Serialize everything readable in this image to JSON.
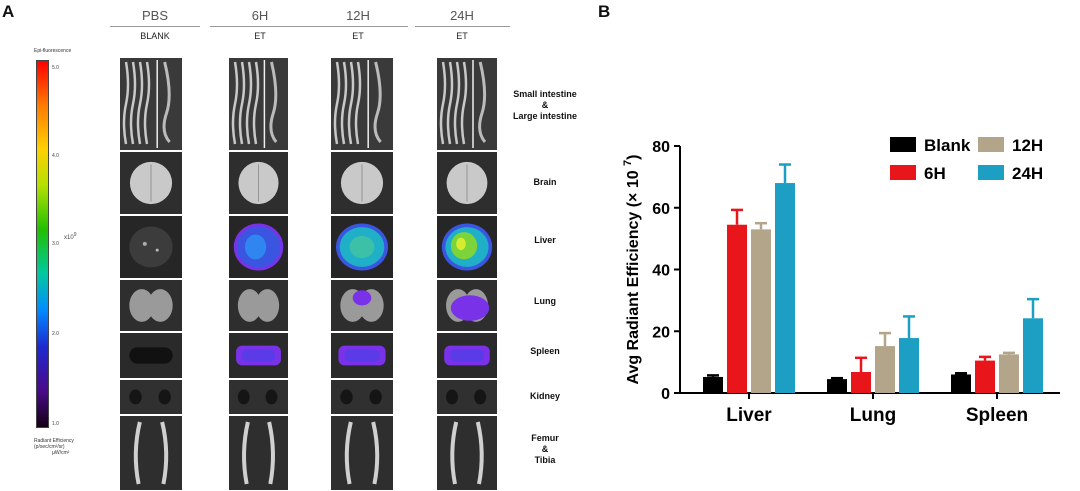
{
  "panel_a": {
    "letter": "A",
    "columns": [
      {
        "title": "PBS",
        "sub": "BLANK"
      },
      {
        "title": "6H",
        "sub": "ET"
      },
      {
        "title": "12H",
        "sub": "ET"
      },
      {
        "title": "24H",
        "sub": "ET"
      }
    ],
    "organs": [
      {
        "line1": "Small intestine",
        "line2": "&",
        "line3": "Large intestine"
      },
      {
        "line1": "Brain",
        "line2": "",
        "line3": ""
      },
      {
        "line1": "Liver",
        "line2": "",
        "line3": ""
      },
      {
        "line1": "Lung",
        "line2": "",
        "line3": ""
      },
      {
        "line1": "Spleen",
        "line2": "",
        "line3": ""
      },
      {
        "line1": "Kidney",
        "line2": "",
        "line3": ""
      },
      {
        "line1": "Femur",
        "line2": "&",
        "line3": "Tibia"
      }
    ],
    "colorbar": {
      "title": "Epi-fluorescence",
      "ticks": [
        "5.0",
        "4.0",
        "3.0",
        "2.0",
        "1.0"
      ],
      "exponent": "x10",
      "exponent_power": "9",
      "unit_line1": "Radiant Efficiency",
      "unit_line2": "(p/sec/cm²/sr)",
      "unit_line3": "µW/cm²"
    },
    "colors": {
      "liver_high": "#7dd33a",
      "liver_mid": "#1fb0c8",
      "signal_blue": "#3a56e0",
      "signal_purple": "#7a32e8"
    }
  },
  "chart_data": {
    "letter": "B",
    "type": "bar",
    "categories": [
      "Liver",
      "Lung",
      "Spleen"
    ],
    "series": [
      {
        "name": "Blank",
        "color": "#000000",
        "values": [
          5.2,
          4.5,
          6.0
        ],
        "errors": [
          0.5,
          0.3,
          0.4
        ]
      },
      {
        "name": "6H",
        "color": "#e8151b",
        "values": [
          54.5,
          6.8,
          10.5
        ],
        "errors": [
          4.8,
          4.6,
          1.2
        ]
      },
      {
        "name": "12H",
        "color": "#b2a589",
        "values": [
          53.0,
          15.2,
          12.5
        ],
        "errors": [
          2.0,
          4.2,
          0.5
        ]
      },
      {
        "name": "24H",
        "color": "#1c9fc3",
        "values": [
          68.0,
          17.8,
          24.2
        ],
        "errors": [
          6.0,
          7.0,
          6.2
        ]
      }
    ],
    "ylabel": "Avg Radiant Efficiency",
    "ylabel_unit": "(× 10",
    "ylabel_power": "7",
    "ylabel_close": ")",
    "ylim": [
      0,
      80
    ],
    "yticks": [
      "0",
      "20",
      "40",
      "60",
      "80"
    ],
    "legend": "top-right"
  }
}
